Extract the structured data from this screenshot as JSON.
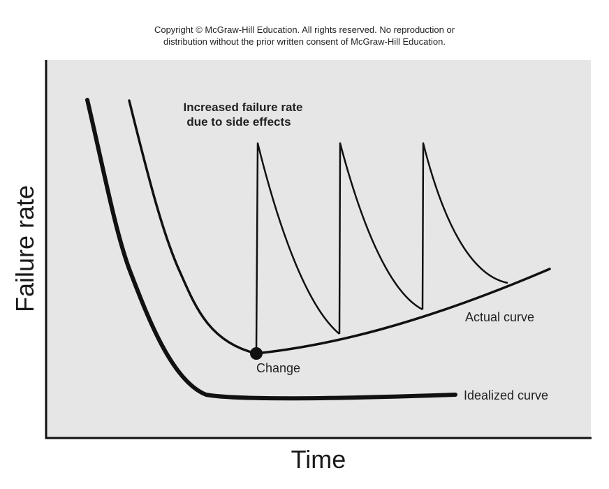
{
  "copyright": {
    "line1": "Copyright © McGraw-Hill Education. All rights reserved. No reproduction or",
    "line2": "distribution without the prior written consent of McGraw-Hill Education."
  },
  "axes": {
    "xlabel": "Time",
    "ylabel": "Failure rate"
  },
  "annotations": {
    "side_effects_line1": "Increased failure rate",
    "side_effects_line2": "due to side effects",
    "change": "Change"
  },
  "curves": {
    "actual": "Actual curve",
    "idealized": "Idealized curve"
  },
  "colors": {
    "background": "#e6e6e6",
    "ink": "#111111"
  }
}
